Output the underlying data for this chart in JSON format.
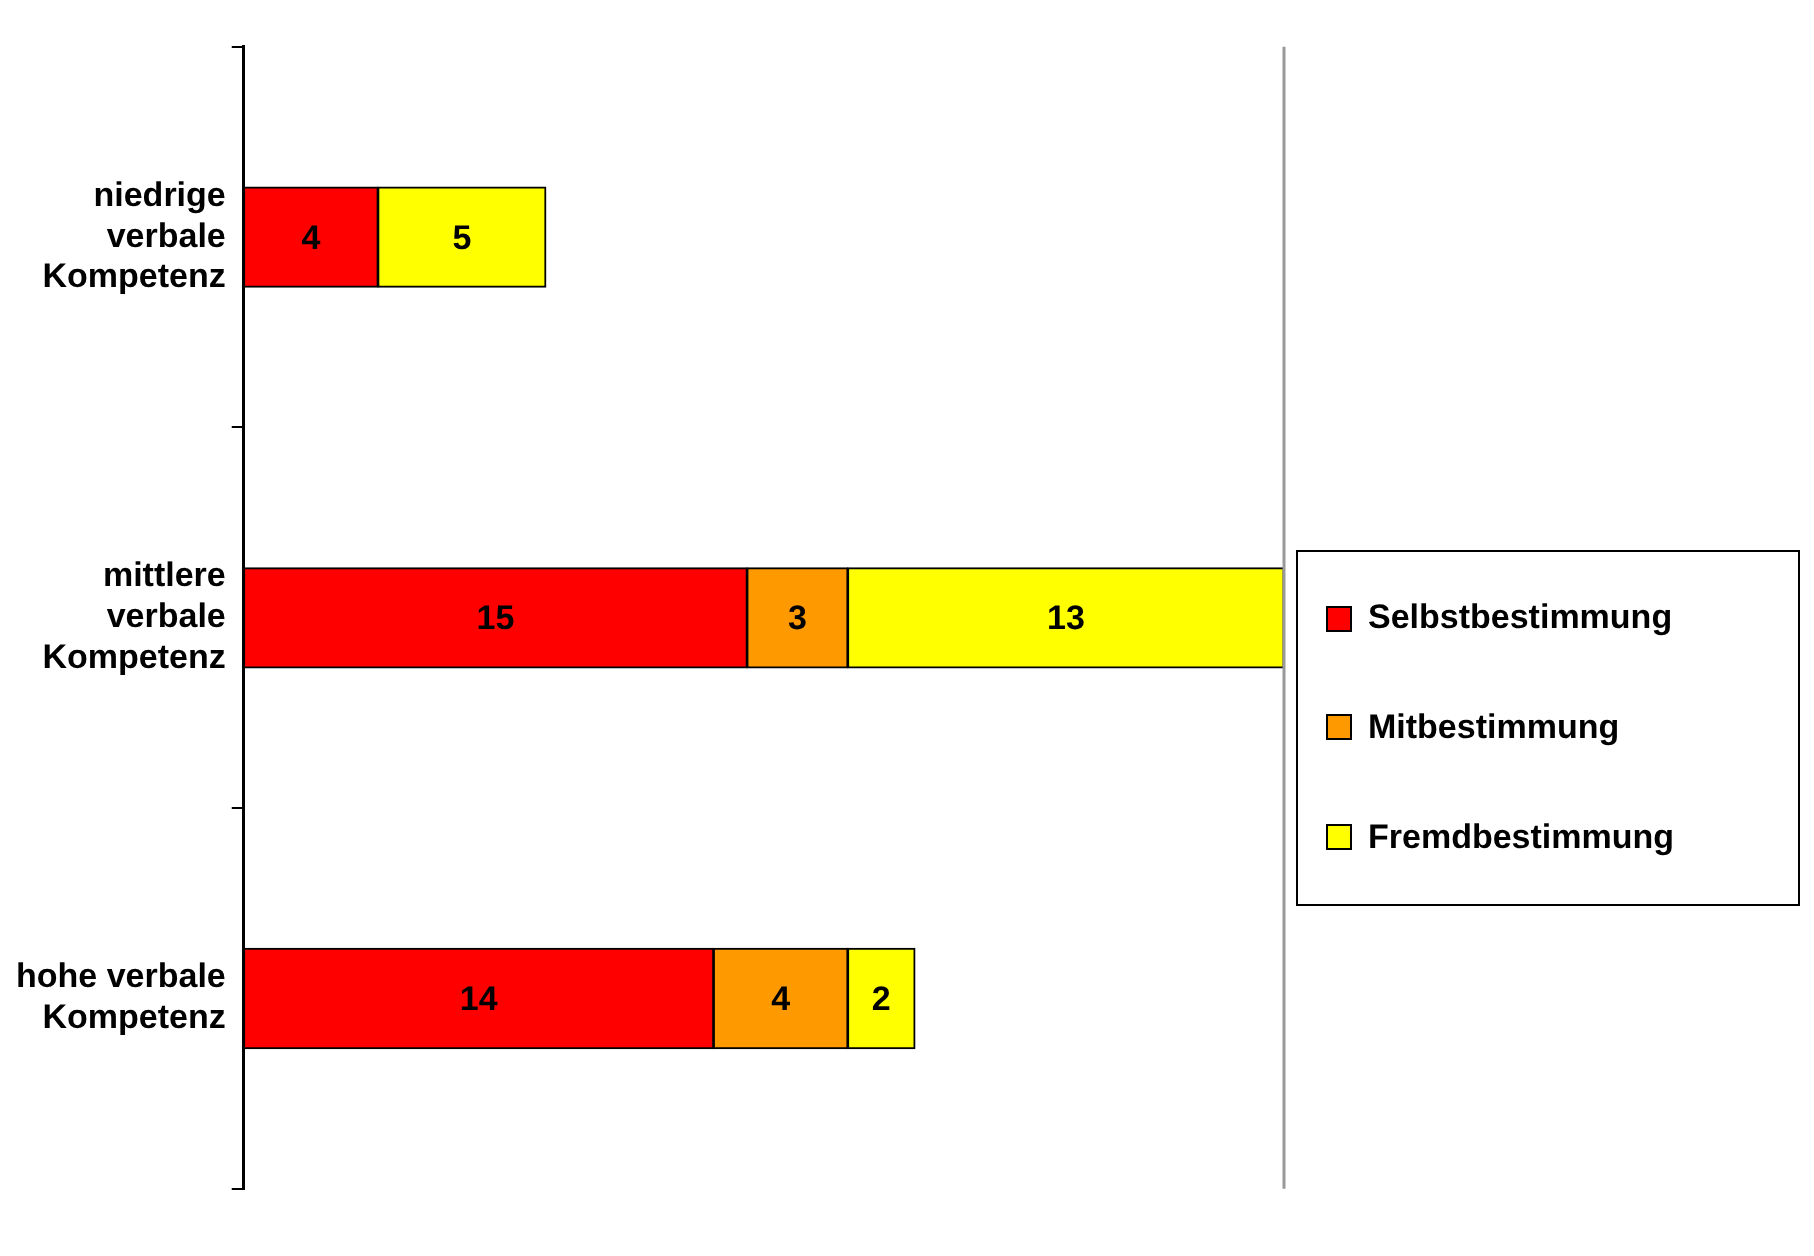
{
  "chart_data": {
    "type": "bar",
    "orientation": "horizontal",
    "stacked": true,
    "data_labels": true,
    "legend": "right",
    "categories": [
      "niedrige verbale Kompetenz",
      "mittlere verbale Kompetenz",
      "hohe verbale Kompetenz"
    ],
    "series": [
      {
        "name": "Selbstbestimmung",
        "color": "#ff0000",
        "values": [
          4,
          15,
          14
        ]
      },
      {
        "name": "Mitbestimmung",
        "color": "#ff9900",
        "values": [
          null,
          3,
          4
        ]
      },
      {
        "name": "Fremdbestimmung",
        "color": "#ffff00",
        "values": [
          5,
          13,
          2
        ]
      }
    ]
  }
}
